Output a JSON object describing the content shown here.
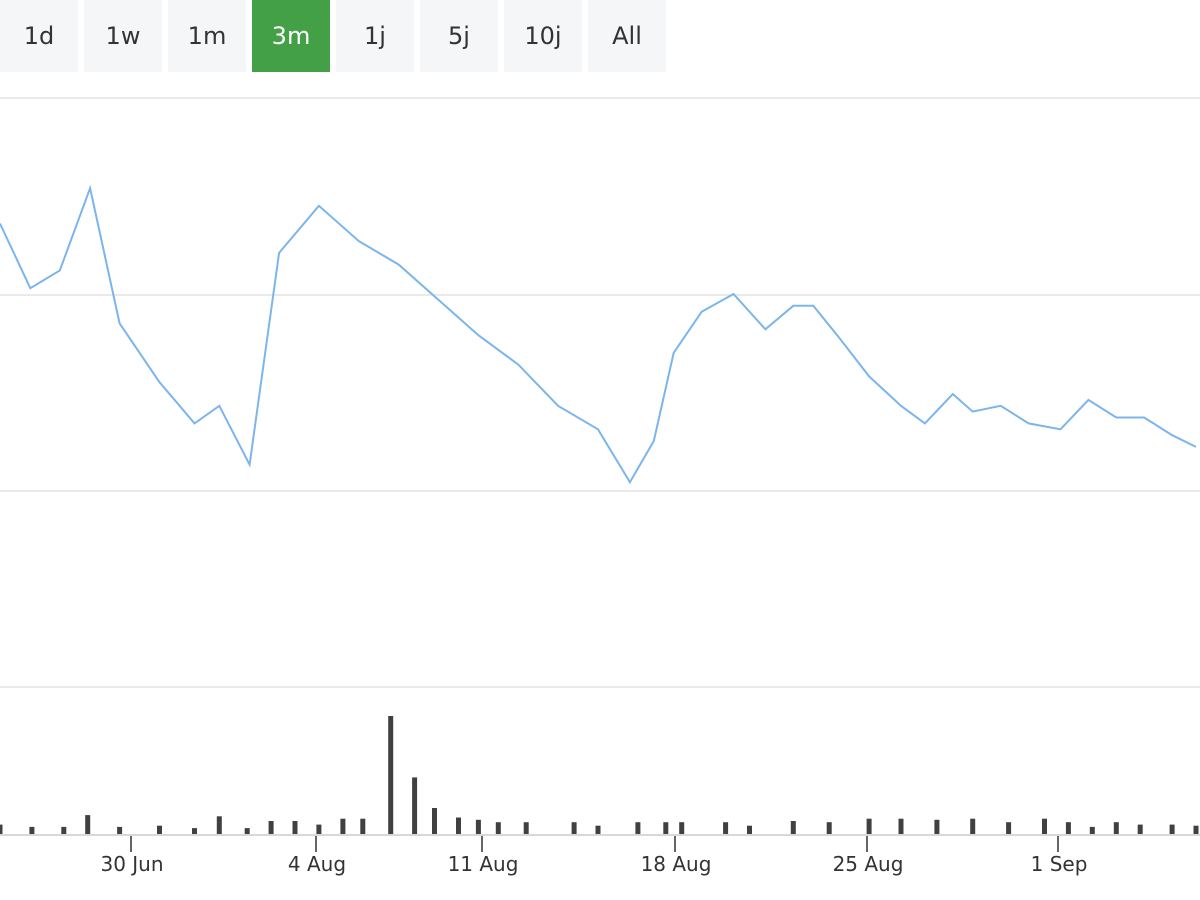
{
  "range_buttons": [
    {
      "label": "1d",
      "active": false
    },
    {
      "label": "1w",
      "active": false
    },
    {
      "label": "1m",
      "active": false
    },
    {
      "label": "3m",
      "active": true
    },
    {
      "label": "1j",
      "active": false
    },
    {
      "label": "5j",
      "active": false
    },
    {
      "label": "10j",
      "active": false
    },
    {
      "label": "All",
      "active": false
    }
  ],
  "colors": {
    "price_line": "#7cb5ec",
    "volume_bar": "#404040",
    "gridline": "#e3e3e3",
    "active_button": "#43a047"
  },
  "chart_data": {
    "type": "line",
    "title": "",
    "xlabel": "",
    "ylabel": "",
    "grid": true,
    "x_ticks": [
      "30 Jun",
      "4 Aug",
      "11 Aug",
      "18 Aug",
      "25 Aug",
      "1 Sep"
    ],
    "price_ylim": [
      0,
      100
    ],
    "price": [
      [
        0.0,
        79
      ],
      [
        0.38,
        68
      ],
      [
        0.75,
        71
      ],
      [
        1.13,
        85
      ],
      [
        1.5,
        62
      ],
      [
        2.0,
        52
      ],
      [
        2.44,
        45
      ],
      [
        2.75,
        48
      ],
      [
        3.13,
        38
      ],
      [
        3.5,
        74
      ],
      [
        4.0,
        82
      ],
      [
        4.5,
        76
      ],
      [
        5.0,
        72
      ],
      [
        5.5,
        66
      ],
      [
        6.0,
        60
      ],
      [
        6.5,
        55
      ],
      [
        7.0,
        48
      ],
      [
        7.5,
        44
      ],
      [
        7.9,
        35
      ],
      [
        8.2,
        42
      ],
      [
        8.45,
        57
      ],
      [
        8.8,
        64
      ],
      [
        9.2,
        67
      ],
      [
        9.6,
        61
      ],
      [
        9.95,
        65
      ],
      [
        10.2,
        65
      ],
      [
        10.5,
        60
      ],
      [
        10.9,
        53
      ],
      [
        11.3,
        48
      ],
      [
        11.6,
        45
      ],
      [
        11.95,
        50
      ],
      [
        12.2,
        47
      ],
      [
        12.55,
        48
      ],
      [
        12.9,
        45
      ],
      [
        13.3,
        44
      ],
      [
        13.65,
        49
      ],
      [
        14.0,
        46
      ],
      [
        14.35,
        46
      ],
      [
        14.7,
        43
      ],
      [
        15.0,
        41
      ]
    ],
    "volume_ylim": [
      0,
      100
    ],
    "volume": [
      [
        0.0,
        8
      ],
      [
        0.4,
        6
      ],
      [
        0.8,
        6
      ],
      [
        1.1,
        16
      ],
      [
        1.5,
        6
      ],
      [
        2.0,
        7
      ],
      [
        2.44,
        5
      ],
      [
        2.75,
        15
      ],
      [
        3.1,
        5
      ],
      [
        3.4,
        11
      ],
      [
        3.7,
        11
      ],
      [
        4.0,
        8
      ],
      [
        4.3,
        13
      ],
      [
        4.55,
        13
      ],
      [
        4.9,
        100
      ],
      [
        5.2,
        48
      ],
      [
        5.45,
        22
      ],
      [
        5.75,
        14
      ],
      [
        6.0,
        12
      ],
      [
        6.25,
        10
      ],
      [
        6.6,
        10
      ],
      [
        7.2,
        10
      ],
      [
        7.5,
        7
      ],
      [
        8.0,
        10
      ],
      [
        8.35,
        10
      ],
      [
        8.55,
        10
      ],
      [
        9.1,
        10
      ],
      [
        9.4,
        7
      ],
      [
        9.95,
        11
      ],
      [
        10.4,
        10
      ],
      [
        10.9,
        13
      ],
      [
        11.3,
        13
      ],
      [
        11.75,
        12
      ],
      [
        12.2,
        13
      ],
      [
        12.65,
        10
      ],
      [
        13.1,
        13
      ],
      [
        13.4,
        10
      ],
      [
        13.7,
        6
      ],
      [
        14.0,
        10
      ],
      [
        14.3,
        8
      ],
      [
        14.7,
        8
      ],
      [
        15.0,
        7
      ]
    ]
  }
}
